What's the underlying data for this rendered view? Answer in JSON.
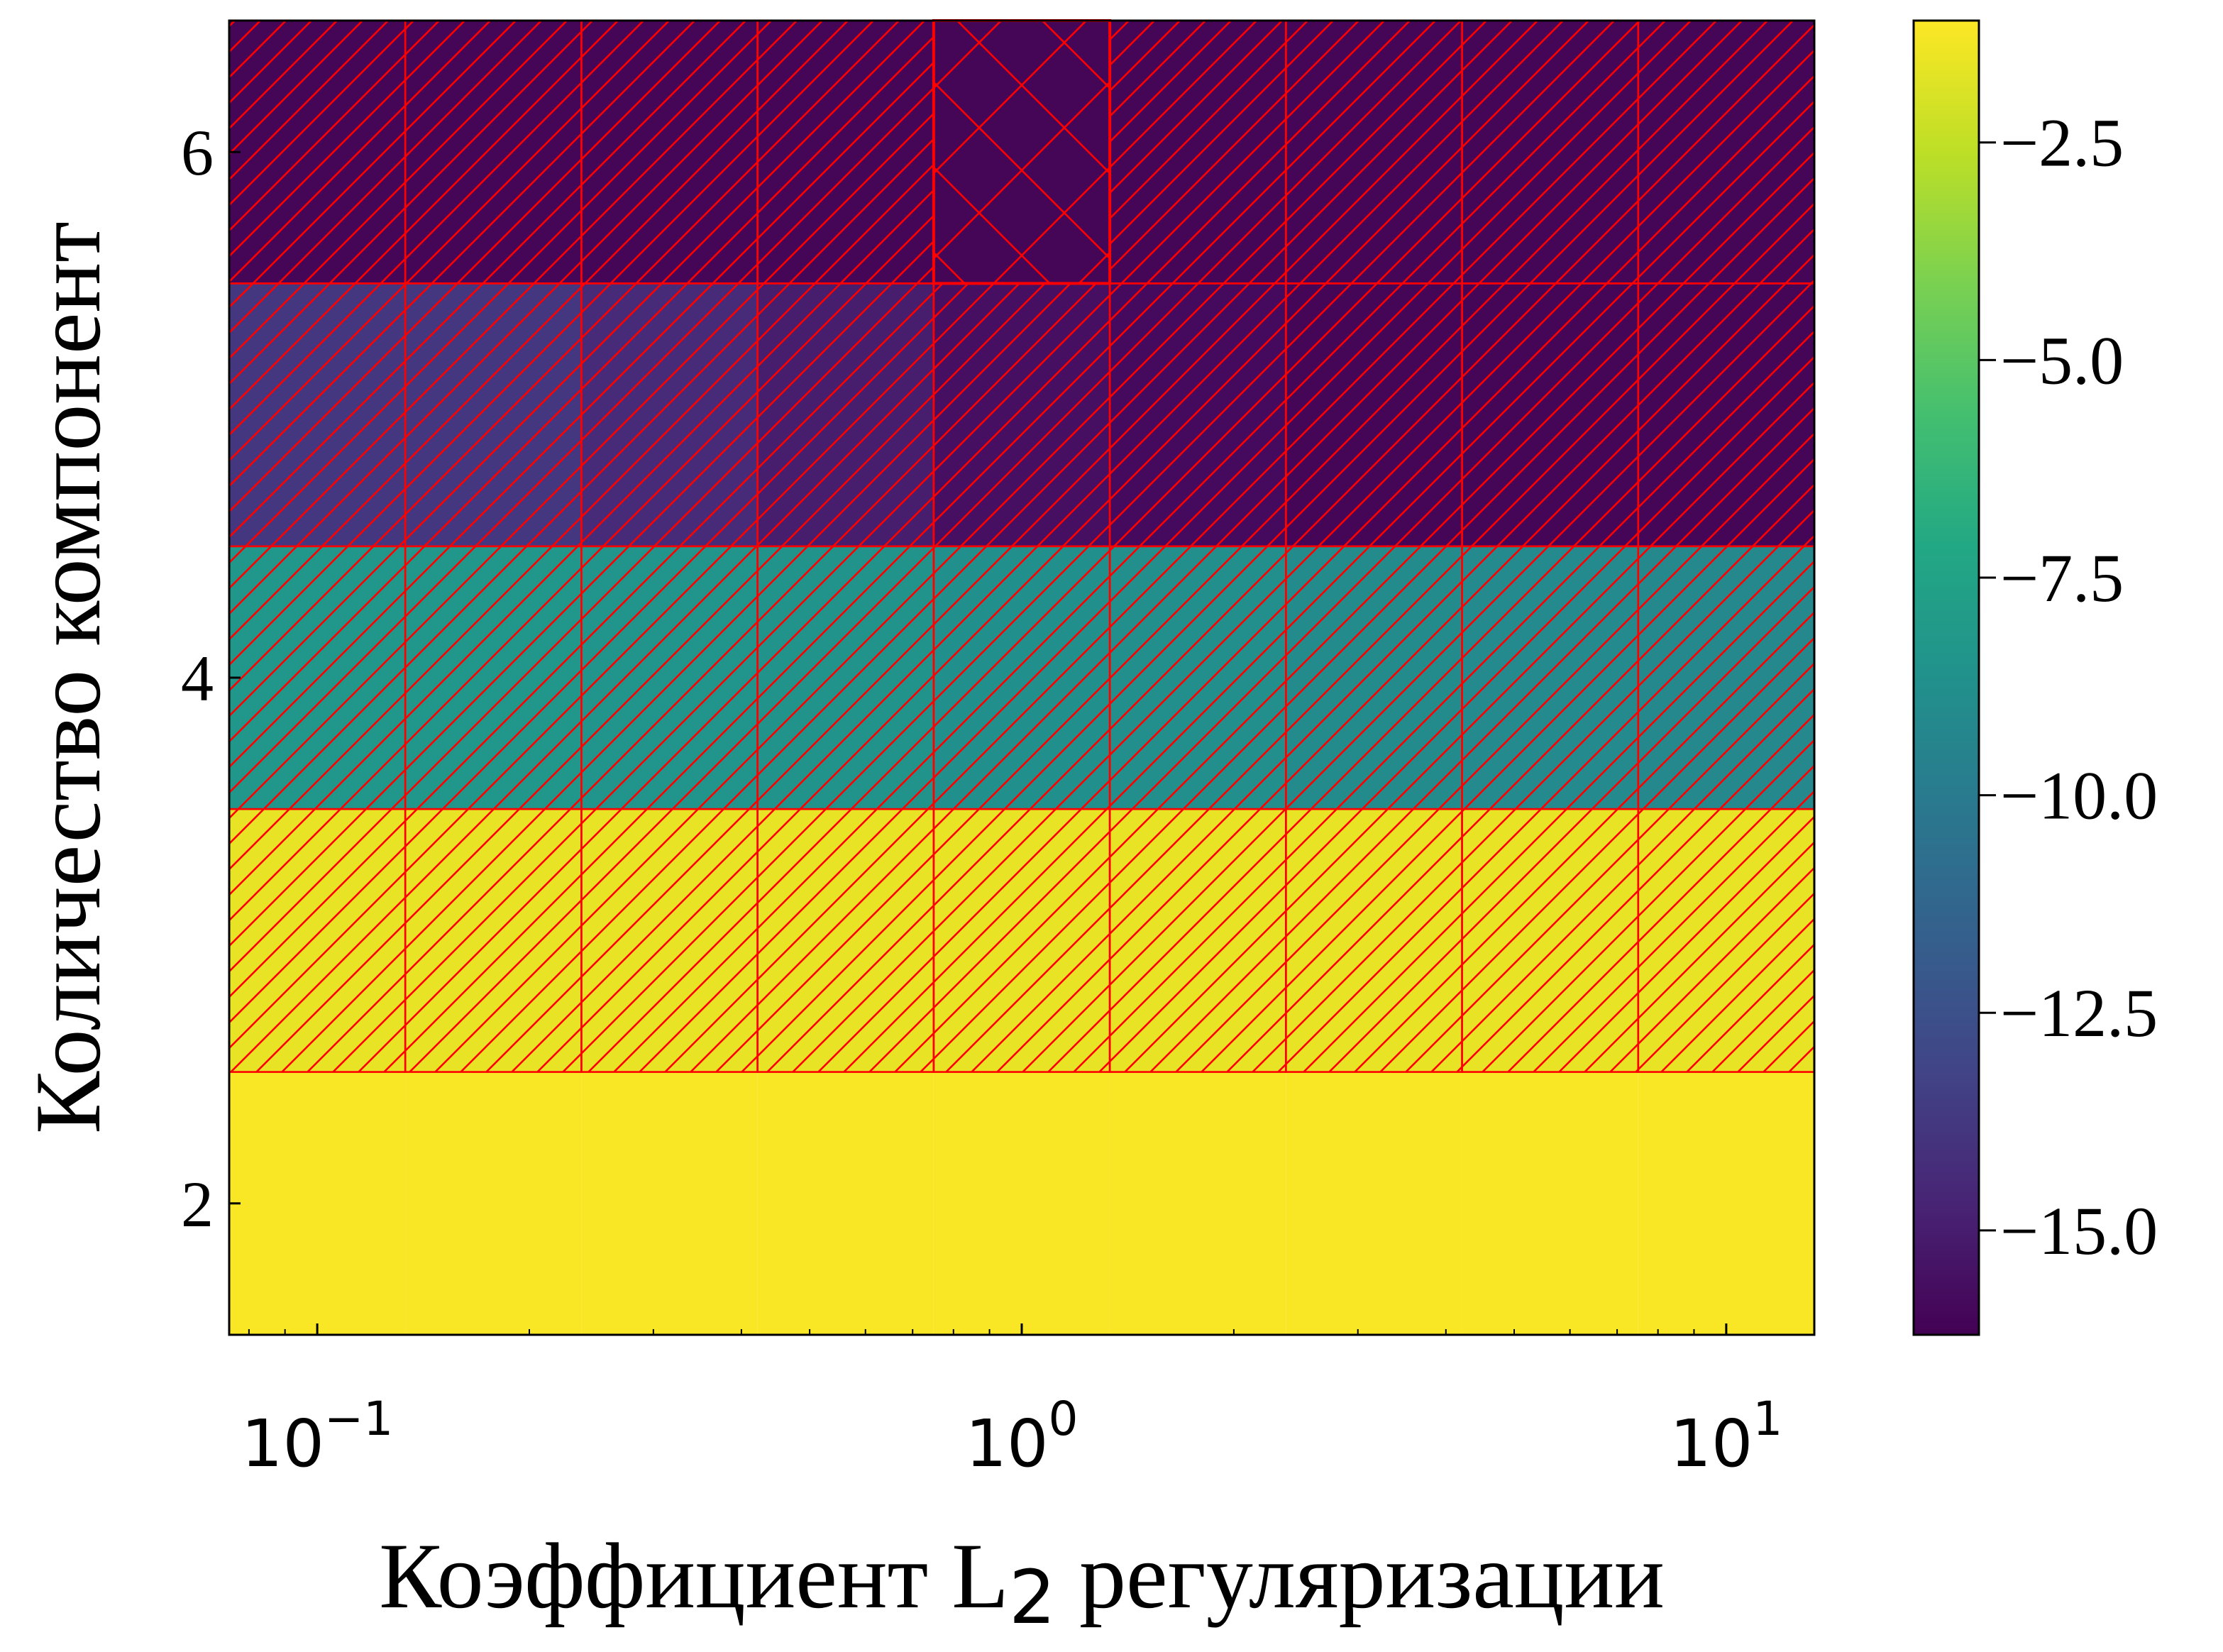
{
  "chart_data": {
    "type": "heatmap",
    "title": "",
    "xlabel_main": "Коэффициент L",
    "xlabel_sub": "2",
    "xlabel_rest": " регуляризации",
    "ylabel": "Количество компонент",
    "x_scale": "log",
    "x_values": [
      0.1,
      0.1778,
      0.3162,
      0.5623,
      1.0,
      1.7783,
      3.1623,
      5.6234,
      10.0
    ],
    "x_tick_values": [
      0.1,
      1,
      10
    ],
    "x_tick_labels": [
      {
        "base": "10",
        "exp": "−1"
      },
      {
        "base": "10",
        "exp": "0"
      },
      {
        "base": "10",
        "exp": "1"
      }
    ],
    "y_values": [
      2,
      3,
      4,
      5,
      6
    ],
    "y_tick_values": [
      2,
      4,
      6
    ],
    "y_tick_labels": [
      "2",
      "4",
      "6"
    ],
    "row_values": [
      -1.2,
      -1.6,
      -8.5,
      -13.8,
      -16.0
    ],
    "cells_overrides": [
      {
        "row": 3,
        "col": 0,
        "value": -13.8
      },
      {
        "row": 3,
        "col": 1,
        "value": -13.8
      },
      {
        "row": 3,
        "col": 2,
        "value": -14.4
      },
      {
        "row": 3,
        "col": 3,
        "value": -15.0
      },
      {
        "row": 3,
        "col": 4,
        "value": -15.6
      },
      {
        "row": 3,
        "col": 5,
        "value": -15.8
      },
      {
        "row": 3,
        "col": 6,
        "value": -16.0
      },
      {
        "row": 3,
        "col": 7,
        "value": -16.0
      },
      {
        "row": 3,
        "col": 8,
        "value": -16.0
      },
      {
        "row": 2,
        "col": 0,
        "value": -8.3
      },
      {
        "row": 2,
        "col": 1,
        "value": -8.3
      },
      {
        "row": 2,
        "col": 2,
        "value": -8.4
      },
      {
        "row": 2,
        "col": 3,
        "value": -8.5
      },
      {
        "row": 2,
        "col": 4,
        "value": -8.7
      },
      {
        "row": 2,
        "col": 5,
        "value": -8.8
      },
      {
        "row": 2,
        "col": 6,
        "value": -9.0
      },
      {
        "row": 2,
        "col": 7,
        "value": -9.1
      },
      {
        "row": 2,
        "col": 8,
        "value": -9.2
      }
    ],
    "hatch_single_rows": [
      1,
      2,
      3,
      4
    ],
    "hatch_cross_cells": [
      {
        "row": 4,
        "col": 4
      }
    ],
    "hatch_color": "#ff0000",
    "colormap": "viridis",
    "colorbar": {
      "min": -16.2,
      "max": -1.1,
      "ticks": [
        -2.5,
        -5.0,
        -7.5,
        -10.0,
        -12.5,
        -15.0
      ],
      "tick_labels": [
        "−2.5",
        "−5.0",
        "−7.5",
        "−10.0",
        "−12.5",
        "−15.0"
      ]
    },
    "grid": false,
    "legend": "none"
  }
}
